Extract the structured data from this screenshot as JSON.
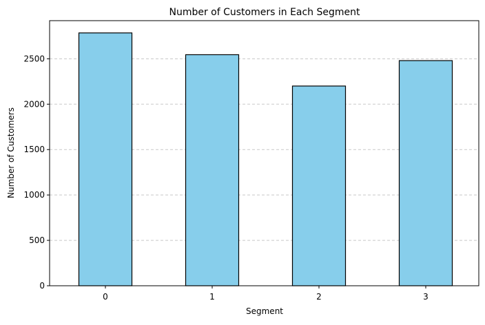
{
  "chart_data": {
    "type": "bar",
    "title": "Number of Customers in Each Segment",
    "xlabel": "Segment",
    "ylabel": "Number of Customers",
    "categories": [
      "0",
      "1",
      "2",
      "3"
    ],
    "values": [
      2785,
      2545,
      2200,
      2480
    ],
    "ylim": [
      0,
      2920
    ],
    "yticks": [
      0,
      500,
      1000,
      1500,
      2000,
      2500
    ],
    "grid": "y-dashed",
    "colors": {
      "bar_fill": "#87CEEB",
      "bar_edge": "#000000",
      "grid": "#c8c8c8"
    }
  }
}
